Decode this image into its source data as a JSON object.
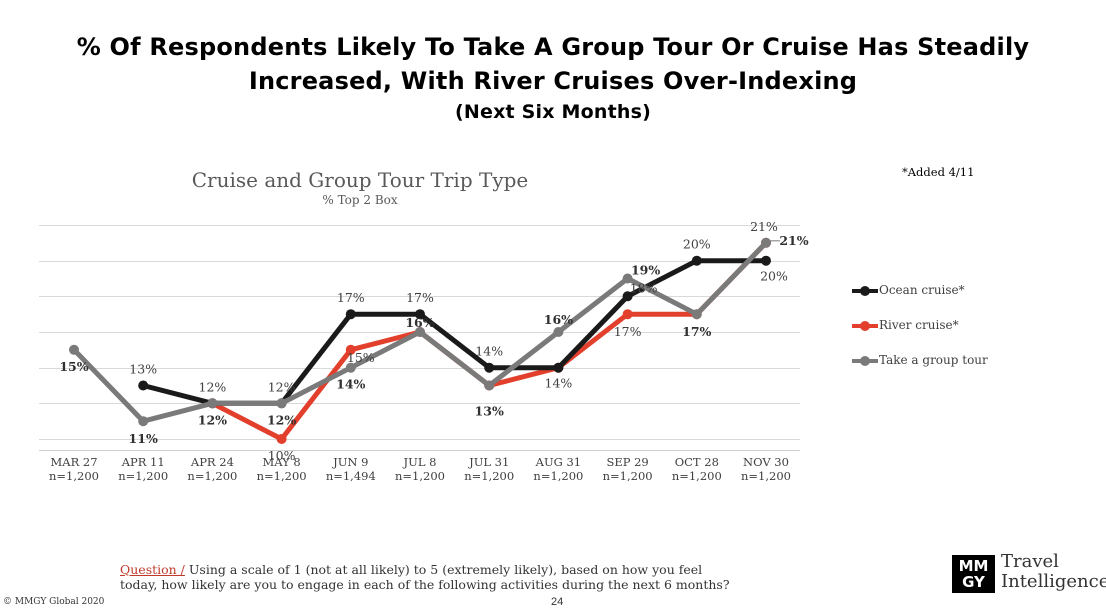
{
  "headline": {
    "line1": "% Of Respondents Likely To Take A Group Tour Or Cruise Has Steadily",
    "line2": "Increased, With River Cruises Over-Indexing",
    "line3": "(Next Six Months)"
  },
  "note": "*Added 4/11",
  "question": {
    "label": "Question /",
    "text": " Using a scale of 1 (not at all likely) to 5 (extremely likely), based on how you feel today, how likely are you to engage in each of the following activities during the next 6 months?"
  },
  "footer": {
    "copyright": "© MMGY Global 2020",
    "page_number": "24"
  },
  "logo": {
    "mark_top": "MM",
    "mark_bottom": "GY",
    "text_line1": "Travel",
    "text_line2": "Intelligence"
  },
  "colors": {
    "ocean": "#1a1a1a",
    "river": "#e2402c",
    "group": "#7a7a7a",
    "gridline": "#d9d9d9"
  },
  "chart_data": {
    "type": "line",
    "title": "Cruise and Group Tour Trip Type",
    "subtitle": "% Top 2 Box",
    "ylim": [
      10,
      22
    ],
    "grid": true,
    "legend_position": "right",
    "categories": [
      "MAR 27",
      "APR 11",
      "APR 24",
      "MAY 8",
      "JUN 9",
      "JUL 8",
      "JUL 31",
      "AUG 31",
      "SEP 29",
      "OCT 28",
      "NOV 30"
    ],
    "sample_sizes": [
      "n=1,200",
      "n=1,200",
      "n=1,200",
      "n=1,200",
      "n=1,494",
      "n=1,200",
      "n=1,200",
      "n=1,200",
      "n=1,200",
      "n=1,200",
      "n=1,200"
    ],
    "series": [
      {
        "name": "Ocean cruise*",
        "key": "ocean",
        "values": [
          null,
          13,
          12,
          12,
          17,
          17,
          14,
          14,
          18,
          20,
          20
        ],
        "labels": [
          null,
          "13%",
          "12%",
          "12%",
          "17%",
          "17%",
          "14%",
          "",
          "18%",
          "20%",
          "20%"
        ]
      },
      {
        "name": "River cruise*",
        "key": "river",
        "values": [
          null,
          null,
          12,
          10,
          15,
          16,
          13,
          14,
          17,
          17,
          21
        ],
        "labels": [
          null,
          null,
          "",
          "10%",
          "15%",
          "",
          "",
          "14%",
          "17%",
          "",
          "21%"
        ]
      },
      {
        "name": "Take a group tour",
        "key": "group",
        "values": [
          15,
          11,
          12,
          12,
          14,
          16,
          13,
          16,
          19,
          17,
          21
        ],
        "labels": [
          "15%",
          "11%",
          "12%",
          "12%",
          "14%",
          "16%",
          "13%",
          "16%",
          "19%",
          "17%",
          "21%"
        ]
      }
    ]
  }
}
